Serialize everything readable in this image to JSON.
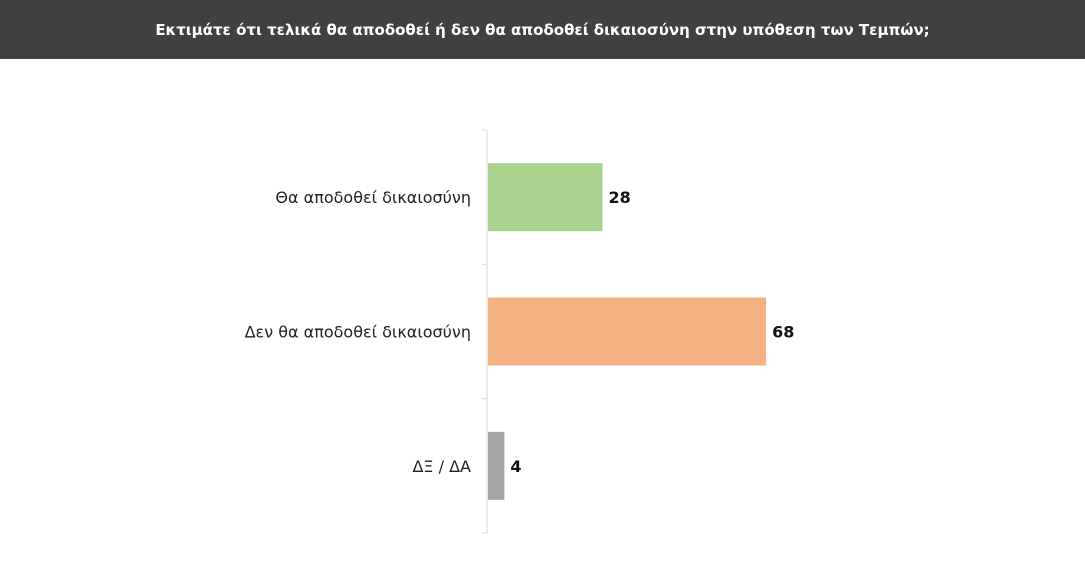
{
  "header": {
    "title": "Εκτιμάτε ότι τελικά θα αποδοθεί ή δεν θα αποδοθεί δικαιοσύνη στην υπόθεση των Τεμπών;"
  },
  "chart_data": {
    "type": "bar",
    "orientation": "horizontal",
    "title": "Εκτιμάτε ότι τελικά θα αποδοθεί ή δεν θα αποδοθεί δικαιοσύνη στην υπόθεση των Τεμπών;",
    "categories": [
      "Θα αποδοθεί δικαιοσύνη",
      "Δεν θα αποδοθεί δικαιοσύνη",
      "ΔΞ / ΔΑ"
    ],
    "values": [
      28,
      68,
      4
    ],
    "value_labels": [
      "28",
      "68",
      "4"
    ],
    "colors": [
      "#a9d18e",
      "#f4b183",
      "#a5a5a5"
    ],
    "xlim": [
      0,
      100
    ],
    "grid": false,
    "legend": "none"
  }
}
